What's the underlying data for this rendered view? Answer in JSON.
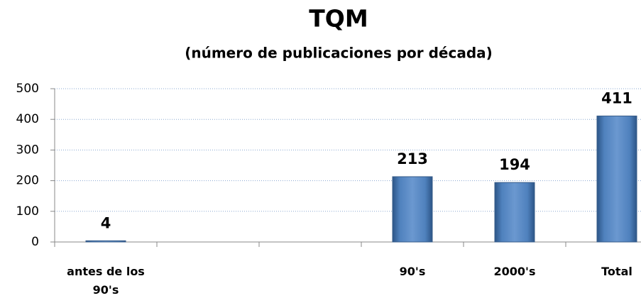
{
  "chart_data": {
    "type": "bar",
    "title": "TQM",
    "subtitle": "(número de publicaciones por década)",
    "categories": [
      "antes de los 90's",
      null,
      null,
      "90's",
      "2000's",
      "Total"
    ],
    "values": [
      4,
      null,
      null,
      213,
      194,
      411
    ],
    "color": "#4f81bd",
    "ylim": [
      0,
      500
    ],
    "yticks": [
      0,
      100,
      200,
      300,
      400,
      500
    ],
    "grid": true
  }
}
